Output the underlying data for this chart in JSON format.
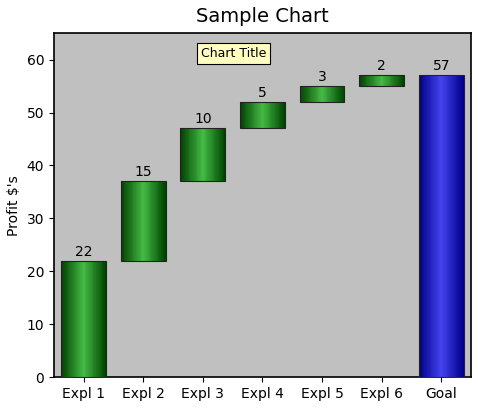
{
  "title": "Sample Chart",
  "ylabel": "Profit $'s",
  "categories": [
    "Expl 1",
    "Expl 2",
    "Expl 3",
    "Expl 4",
    "Expl 5",
    "Expl 6",
    "Goal"
  ],
  "values": [
    22,
    15,
    10,
    5,
    3,
    2,
    57
  ],
  "labels": [
    22,
    15,
    10,
    5,
    3,
    2,
    57
  ],
  "bottoms": [
    0,
    22,
    37,
    47,
    52,
    55,
    0
  ],
  "bar_type": [
    "green",
    "green",
    "green",
    "green",
    "green",
    "green",
    "blue"
  ],
  "ylim": [
    0,
    65
  ],
  "yticks": [
    0,
    10,
    20,
    30,
    40,
    50,
    60
  ],
  "legend_text": "Chart Title",
  "background_color": "#c0c0c0",
  "outer_background": "#ffffff",
  "title_fontsize": 14,
  "axis_fontsize": 10,
  "tick_fontsize": 10,
  "label_fontsize": 10,
  "bar_width": 0.75,
  "green_dark": "#004400",
  "green_mid": "#008800",
  "green_light": "#44bb44",
  "blue_dark": "#000088",
  "blue_mid": "#0000cc",
  "blue_light": "#4444ee"
}
